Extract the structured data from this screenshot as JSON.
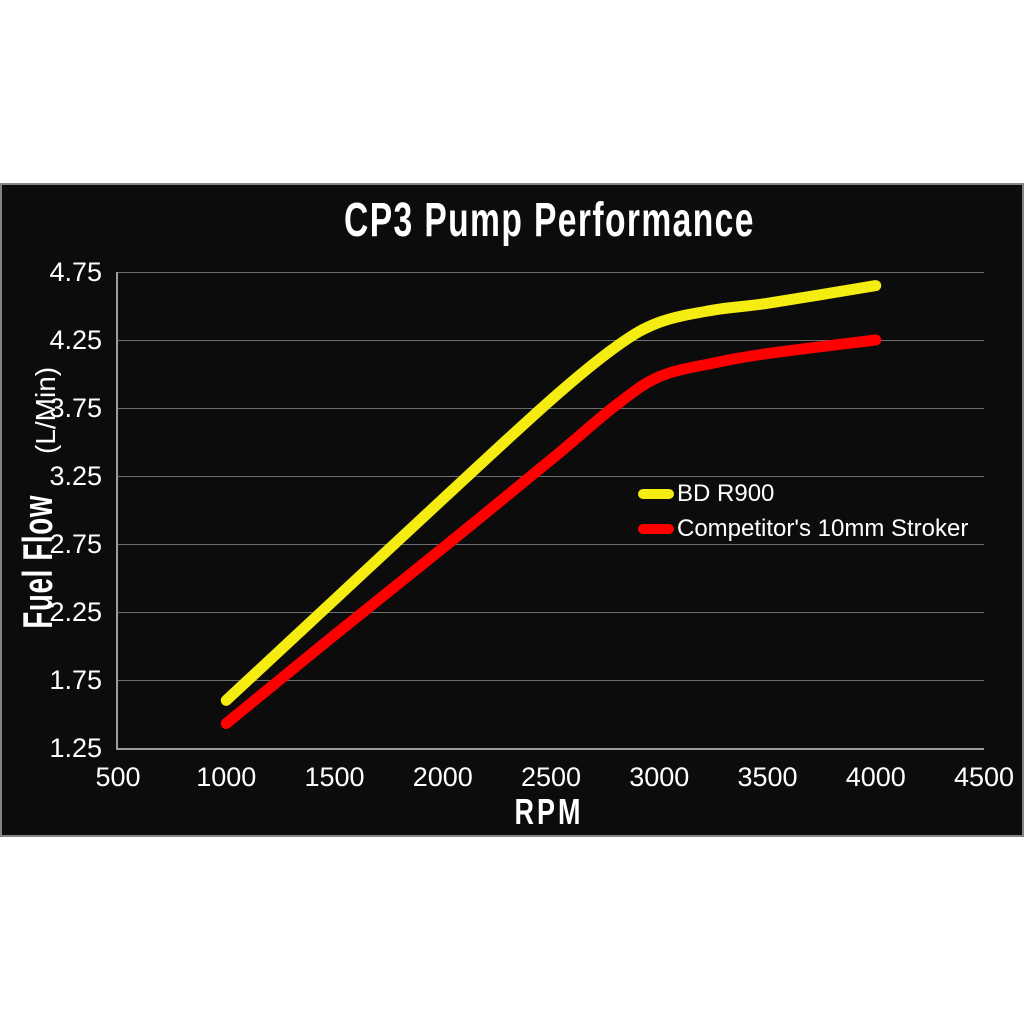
{
  "page": {
    "background_color": "#ffffff",
    "panel_background_color": "#0c0c0c",
    "panel_border_color": "#848484",
    "text_color": "#ffffff"
  },
  "chart_data": {
    "type": "line",
    "title": "CP3 Pump Performance",
    "xlabel": "RPM",
    "ylabel": "Fuel Flow (L/Min)",
    "ylabel_main": "Fuel Flow",
    "ylabel_unit": "(L/Min)",
    "xlim": [
      500,
      4500
    ],
    "ylim": [
      1.25,
      4.75
    ],
    "x_ticks": [
      500,
      1000,
      1500,
      2000,
      2500,
      3000,
      3500,
      4000,
      4500
    ],
    "y_ticks": [
      1.25,
      1.75,
      2.25,
      2.75,
      3.25,
      3.75,
      4.25,
      4.75
    ],
    "grid": "horizontal gridlines only",
    "legend_position": "inside middle-right",
    "gridline_color": "#6e6e6e",
    "axis_line_color": "#9c9c9c",
    "line_width": 11,
    "series": [
      {
        "name": "BD R900",
        "color": "#f5ec11",
        "x": [
          1000,
          1500,
          2000,
          2500,
          2800,
          3000,
          3250,
          3500,
          4000
        ],
        "values": [
          1.6,
          2.34,
          3.08,
          3.81,
          4.2,
          4.38,
          4.47,
          4.52,
          4.65
        ]
      },
      {
        "name": "Competitor's 10mm Stroker",
        "color": "#fe0000",
        "x": [
          1000,
          1500,
          2000,
          2500,
          2800,
          3000,
          3250,
          3500,
          4000
        ],
        "values": [
          1.43,
          2.08,
          2.72,
          3.37,
          3.77,
          3.98,
          4.08,
          4.15,
          4.25
        ]
      }
    ]
  }
}
